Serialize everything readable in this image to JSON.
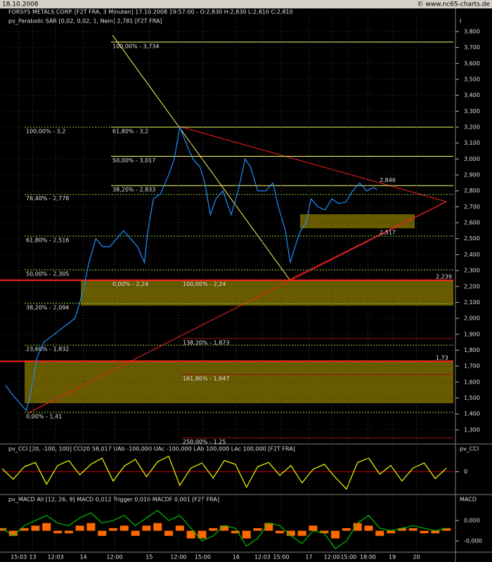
{
  "header": {
    "date": "18.10.2008",
    "copyright": "© www.nc65-charts.de"
  },
  "chart_data": [
    {
      "type": "line",
      "title": "FORSYS METALS CORP. [F2T FRA, 3 Minuten] 17.10.2008 19:57:00 - O:2,830 H:2,830 L:2,810 C:2,810",
      "subtitle": "pv_Parabolic SAR [0,02, 0,02, 1, Nein] 2,781 [F2T FRA]",
      "y_label": "I",
      "xlim": [
        0,
        650
      ],
      "ylim": [
        1.22,
        3.91
      ],
      "yticks": [
        {
          "value": 1.3,
          "label": "1,300"
        },
        {
          "value": 1.4,
          "label": "1,400"
        },
        {
          "value": 1.5,
          "label": "1,500"
        },
        {
          "value": 1.6,
          "label": "1,600"
        },
        {
          "value": 1.7,
          "label": "1,700"
        },
        {
          "value": 1.8,
          "label": "1,800"
        },
        {
          "value": 1.9,
          "label": "1,900"
        },
        {
          "value": 2.0,
          "label": "2,000"
        },
        {
          "value": 2.1,
          "label": "2,100"
        },
        {
          "value": 2.2,
          "label": "2,200"
        },
        {
          "value": 2.3,
          "label": "2,300"
        },
        {
          "value": 2.4,
          "label": "2,400"
        },
        {
          "value": 2.5,
          "label": "2,500"
        },
        {
          "value": 2.6,
          "label": "2,600"
        },
        {
          "value": 2.7,
          "label": "2,700"
        },
        {
          "value": 2.8,
          "label": "2,800"
        },
        {
          "value": 2.9,
          "label": "2,900"
        },
        {
          "value": 3.0,
          "label": "3,000"
        },
        {
          "value": 3.1,
          "label": "3,100"
        },
        {
          "value": 3.2,
          "label": "3,200"
        },
        {
          "value": 3.3,
          "label": "3,300"
        },
        {
          "value": 3.4,
          "label": "3,400"
        },
        {
          "value": 3.5,
          "label": "3,500"
        },
        {
          "value": 3.6,
          "label": "3,600"
        },
        {
          "value": 3.7,
          "label": "3,700"
        },
        {
          "value": 3.8,
          "label": "3,800"
        }
      ],
      "grid": true,
      "series": [
        {
          "color": "#1e90ff",
          "x": [
            5,
            15,
            27,
            35,
            42,
            50,
            60,
            75,
            90,
            105,
            112,
            118,
            125,
            135,
            145,
            155,
            165,
            175,
            185,
            195,
            205,
            210,
            218,
            228,
            240,
            248,
            256,
            265,
            275,
            285,
            292,
            300,
            308,
            318,
            330,
            340,
            350,
            358,
            368,
            380,
            390,
            398,
            408,
            415,
            422,
            430,
            438,
            445,
            455,
            465,
            475,
            485,
            495,
            505,
            515,
            525,
            535,
            540
          ],
          "values": [
            1.58,
            1.52,
            1.46,
            1.42,
            1.55,
            1.75,
            1.85,
            1.9,
            1.95,
            2.0,
            2.1,
            2.2,
            2.35,
            2.5,
            2.45,
            2.45,
            2.5,
            2.55,
            2.5,
            2.45,
            2.35,
            2.55,
            2.75,
            2.78,
            2.9,
            3.0,
            3.2,
            3.1,
            3.0,
            2.95,
            2.85,
            2.65,
            2.75,
            2.8,
            2.65,
            2.8,
            3.0,
            2.95,
            2.8,
            2.8,
            2.85,
            2.7,
            2.55,
            2.35,
            2.45,
            2.55,
            2.6,
            2.75,
            2.7,
            2.68,
            2.75,
            2.72,
            2.73,
            2.8,
            2.85,
            2.8,
            2.82,
            2.81
          ]
        }
      ],
      "levels": [
        {
          "color": "#9acd32",
          "items": [
            {
              "label": "100,00% - 3,2",
              "value": 3.2
            },
            {
              "label": "76,40% - 2,778",
              "value": 2.778
            },
            {
              "label": "61,80% - 2,516",
              "value": 2.516
            },
            {
              "label": "50,00% - 2,305",
              "value": 2.305
            },
            {
              "label": "38,20% - 2,094",
              "value": 2.094
            },
            {
              "label": "23,60% - 1,832",
              "value": 1.832
            },
            {
              "label": "0,00% - 1,41",
              "value": 1.41
            }
          ]
        },
        {
          "color": "#ffff66",
          "items": [
            {
              "label": "100,00% - 3,734",
              "value": 3.734
            },
            {
              "label": "61,80% - 3,2",
              "value": 3.2
            },
            {
              "label": "50,00% - 3,017",
              "value": 3.017
            },
            {
              "label": "38,20% - 2,833",
              "value": 2.833
            },
            {
              "label": "0,00% - 2,24",
              "value": 2.24
            }
          ]
        },
        {
          "color": "#a01010",
          "items": [
            {
              "label": "100,00% - 2,24",
              "value": 2.24
            },
            {
              "label": "138,20% - 1,873",
              "value": 1.873
            },
            {
              "label": "161,80% - 1,647",
              "value": 1.647
            },
            {
              "label": "250,00% - 1,25",
              "value": 1.25
            }
          ]
        }
      ],
      "markers": [
        {
          "label": "2,239",
          "value": 2.239
        },
        {
          "label": "1,73",
          "value": 1.73
        },
        {
          "label": "2,846",
          "value": 2.846
        },
        {
          "label": "2,517",
          "value": 2.517
        }
      ]
    },
    {
      "type": "line",
      "title": "pv_CCI [20, -100, 100] CCI20 58,017 UAb -100,000 UAc -100,000 LAb 100,000 LAc 100,000 [F2T FRA]",
      "y_label": "pv_CCI",
      "xlim": [
        0,
        650
      ],
      "ylim": [
        -300,
        300
      ],
      "yticks": [
        0
      ],
      "series": [
        {
          "color": "#ffff00",
          "x": [
            0,
            16,
            32,
            48,
            64,
            80,
            96,
            112,
            128,
            144,
            160,
            176,
            192,
            208,
            224,
            240,
            256,
            272,
            288,
            304,
            320,
            336,
            352,
            368,
            384,
            400,
            416,
            432,
            448,
            464,
            480,
            496,
            512,
            528,
            544,
            560,
            576,
            592,
            608,
            624,
            640
          ],
          "values": [
            50,
            -120,
            80,
            150,
            -200,
            100,
            180,
            -50,
            120,
            220,
            -150,
            90,
            200,
            -80,
            160,
            250,
            -220,
            60,
            140,
            -100,
            180,
            120,
            -250,
            80,
            150,
            -60,
            100,
            -180,
            40,
            120,
            -90,
            -280,
            150,
            220,
            -40,
            100,
            -150,
            60,
            140,
            -110,
            58
          ]
        }
      ]
    },
    {
      "type": "macd",
      "title": "pv_MACD All [12, 26, 9] MACD 0,012 Trigger 0,010 MACDF 0,001 [F2T FRA]",
      "y_label": "MACD",
      "xlim": [
        0,
        650
      ],
      "ylim": [
        -0.00081,
        0.00103
      ],
      "yticks": [
        {
          "value": 0.0004,
          "label": "0,000"
        },
        {
          "value": -0.0004,
          "label": "-0,000"
        }
      ],
      "xticks": [
        {
          "value": 24,
          "label": "15:03"
        },
        {
          "value": 44,
          "label": "13"
        },
        {
          "value": 77,
          "label": "12:03"
        },
        {
          "value": 117,
          "label": "14"
        },
        {
          "value": 162,
          "label": "12:00"
        },
        {
          "value": 212,
          "label": "15"
        },
        {
          "value": 254,
          "label": "12:00"
        },
        {
          "value": 289,
          "label": "15:00"
        },
        {
          "value": 337,
          "label": "16"
        },
        {
          "value": 375,
          "label": "12:03"
        },
        {
          "value": 402,
          "label": "15:00"
        },
        {
          "value": 442,
          "label": "17"
        },
        {
          "value": 475,
          "label": "12:00"
        },
        {
          "value": 499,
          "label": "15:00"
        },
        {
          "value": 527,
          "label": "18:00"
        },
        {
          "value": 562,
          "label": "19"
        },
        {
          "value": 597,
          "label": "20"
        }
      ],
      "series": [
        {
          "kind": "bar",
          "color": "#ff6a00",
          "x": [
            0,
            16,
            32,
            48,
            64,
            80,
            96,
            112,
            128,
            144,
            160,
            176,
            192,
            208,
            224,
            240,
            256,
            272,
            288,
            304,
            320,
            336,
            352,
            368,
            384,
            400,
            416,
            432,
            448,
            464,
            480,
            496,
            512,
            528,
            544,
            560,
            576,
            592,
            608,
            624,
            640
          ],
          "values": [
            0.0001,
            -0.0002,
            0.0001,
            0.0002,
            0.0003,
            -0.0001,
            -0.0001,
            0.0002,
            0.0003,
            -0.0002,
            0.0001,
            0.0002,
            -0.0002,
            0.0002,
            0.0003,
            -0.0002,
            0.0002,
            -0.0003,
            -0.0003,
            0.0001,
            0.0002,
            -0.0001,
            -0.0003,
            0.0001,
            0.0003,
            -0.0001,
            -0.0002,
            -0.0002,
            0.0002,
            -0.0001,
            -0.0003,
            0.0001,
            0.0003,
            0.0002,
            -0.0002,
            -0.0001,
            0.0001,
            0.0001,
            -0.0001,
            -0.0001,
            0.0001
          ]
        },
        {
          "kind": "line",
          "color": "#00c000",
          "x": [
            0,
            16,
            32,
            48,
            64,
            80,
            96,
            112,
            128,
            144,
            160,
            176,
            192,
            208,
            224,
            240,
            256,
            272,
            288,
            304,
            320,
            336,
            352,
            368,
            384,
            400,
            416,
            432,
            448,
            464,
            480,
            496,
            512,
            528,
            544,
            560,
            576,
            592,
            608,
            624,
            640
          ],
          "values": [
            0.0001,
            -0.0002,
            0.0002,
            0.0004,
            0.0006,
            0.0003,
            0.0002,
            0.0005,
            0.0007,
            0.0003,
            0.0004,
            0.0006,
            0.0002,
            0.0005,
            0.0008,
            0.0004,
            0.0006,
            0.0001,
            -0.0004,
            -0.0002,
            0.0002,
            0.0001,
            -0.0006,
            -0.0003,
            0.0003,
            0.0002,
            -0.0002,
            -0.0005,
            0.0,
            -0.0001,
            -0.0007,
            -0.0004,
            0.0003,
            0.0006,
            0.0001,
            0.0,
            0.0001,
            0.0002,
            0.0001,
            0.0,
            0.0001
          ]
        }
      ]
    }
  ]
}
